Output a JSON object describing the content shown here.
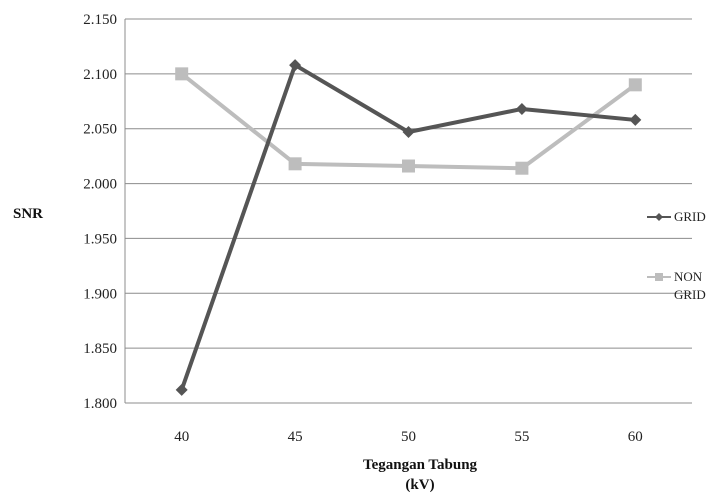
{
  "chart_data": {
    "type": "line",
    "title": "",
    "xlabel_lines": [
      "Tegangan Tabung",
      "(kV)"
    ],
    "ylabel": "SNR",
    "categories": [
      "40",
      "45",
      "50",
      "55",
      "60"
    ],
    "yticks": [
      "1.800",
      "1.850",
      "1.900",
      "1.950",
      "2.000",
      "2.050",
      "2.100",
      "2.150"
    ],
    "ylim": [
      1.8,
      2.15
    ],
    "grid": true,
    "legend_position": "right",
    "series": [
      {
        "name_lines": [
          "GRID"
        ],
        "marker": "diamond",
        "color": "#555555",
        "values": [
          1.812,
          2.108,
          2.047,
          2.068,
          2.058
        ]
      },
      {
        "name_lines": [
          "NON",
          "GRID"
        ],
        "marker": "square",
        "color": "#bdbdbd",
        "values": [
          2.1,
          2.018,
          2.016,
          2.014,
          2.09
        ]
      }
    ]
  }
}
